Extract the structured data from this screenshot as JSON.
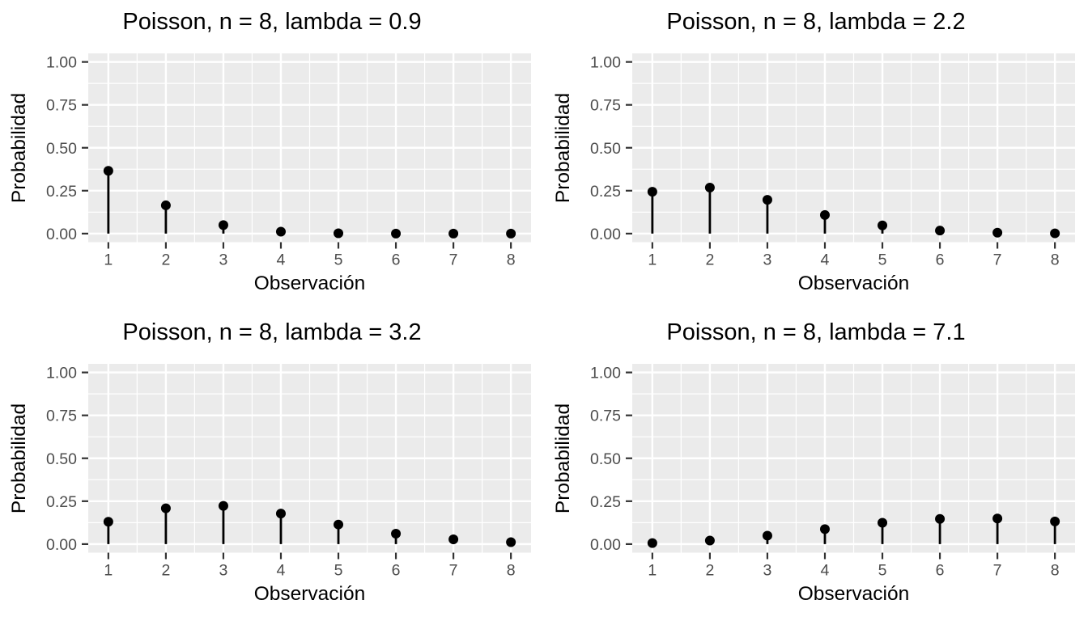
{
  "figure": {
    "background": "#FFFFFF",
    "rows": 2,
    "cols": 2
  },
  "style": {
    "panel_bg": "#EBEBEB",
    "grid_color": "#FFFFFF",
    "tick_mark_color": "#333333",
    "tick_label_color": "#4D4D4D",
    "title_color": "#000000",
    "axis_title_color": "#000000",
    "point_color": "#000000",
    "stem_color": "#000000"
  },
  "chart_data": [
    {
      "type": "scatter",
      "style": "stem",
      "title": "Poisson, n = 8, lambda = 0.9",
      "xlabel": "Observación",
      "ylabel": "Probabilidad",
      "x": [
        1,
        2,
        3,
        4,
        5,
        6,
        7,
        8
      ],
      "values": [
        0.36591,
        0.16466,
        0.0494,
        0.01111,
        0.002,
        0.0003,
        3.86e-05,
        4.3e-06
      ],
      "xlim": [
        0.65,
        8.35
      ],
      "ylim": [
        -0.05,
        1.05
      ],
      "x_ticks": [
        1,
        2,
        3,
        4,
        5,
        6,
        7,
        8
      ],
      "x_tick_labels": [
        "1",
        "2",
        "3",
        "4",
        "5",
        "6",
        "7",
        "8"
      ],
      "y_ticks": [
        0,
        0.25,
        0.5,
        0.75,
        1.0
      ],
      "y_tick_labels": [
        "0.00",
        "0.25",
        "0.50",
        "0.75",
        "1.00"
      ],
      "grid": true,
      "legend": false
    },
    {
      "type": "scatter",
      "style": "stem",
      "title": "Poisson, n = 8, lambda = 2.2",
      "xlabel": "Observación",
      "ylabel": "Probabilidad",
      "x": [
        1,
        2,
        3,
        4,
        5,
        6,
        7,
        8
      ],
      "values": [
        0.24377,
        0.26814,
        0.19664,
        0.10815,
        0.04759,
        0.01745,
        0.00548,
        0.00151
      ],
      "xlim": [
        0.65,
        8.35
      ],
      "ylim": [
        -0.05,
        1.05
      ],
      "x_ticks": [
        1,
        2,
        3,
        4,
        5,
        6,
        7,
        8
      ],
      "x_tick_labels": [
        "1",
        "2",
        "3",
        "4",
        "5",
        "6",
        "7",
        "8"
      ],
      "y_ticks": [
        0,
        0.25,
        0.5,
        0.75,
        1.0
      ],
      "y_tick_labels": [
        "0.00",
        "0.25",
        "0.50",
        "0.75",
        "1.00"
      ],
      "grid": true,
      "legend": false
    },
    {
      "type": "scatter",
      "style": "stem",
      "title": "Poisson, n = 8, lambda = 3.2",
      "xlabel": "Observación",
      "ylabel": "Probabilidad",
      "x": [
        1,
        2,
        3,
        4,
        5,
        6,
        7,
        8
      ],
      "values": [
        0.13044,
        0.2087,
        0.22262,
        0.17809,
        0.11398,
        0.06079,
        0.02779,
        0.01112
      ],
      "xlim": [
        0.65,
        8.35
      ],
      "ylim": [
        -0.05,
        1.05
      ],
      "x_ticks": [
        1,
        2,
        3,
        4,
        5,
        6,
        7,
        8
      ],
      "x_tick_labels": [
        "1",
        "2",
        "3",
        "4",
        "5",
        "6",
        "7",
        "8"
      ],
      "y_ticks": [
        0,
        0.25,
        0.5,
        0.75,
        1.0
      ],
      "y_tick_labels": [
        "0.00",
        "0.25",
        "0.50",
        "0.75",
        "1.00"
      ],
      "grid": true,
      "legend": false
    },
    {
      "type": "scatter",
      "style": "stem",
      "title": "Poisson, n = 8, lambda = 7.1",
      "xlabel": "Observación",
      "ylabel": "Probabilidad",
      "x": [
        1,
        2,
        3,
        4,
        5,
        6,
        7,
        8
      ],
      "values": [
        0.00586,
        0.0208,
        0.04922,
        0.08736,
        0.12406,
        0.1468,
        0.1489,
        0.13215
      ],
      "xlim": [
        0.65,
        8.35
      ],
      "ylim": [
        -0.05,
        1.05
      ],
      "x_ticks": [
        1,
        2,
        3,
        4,
        5,
        6,
        7,
        8
      ],
      "x_tick_labels": [
        "1",
        "2",
        "3",
        "4",
        "5",
        "6",
        "7",
        "8"
      ],
      "y_ticks": [
        0,
        0.25,
        0.5,
        0.75,
        1.0
      ],
      "y_tick_labels": [
        "0.00",
        "0.25",
        "0.50",
        "0.75",
        "1.00"
      ],
      "grid": true,
      "legend": false
    }
  ]
}
